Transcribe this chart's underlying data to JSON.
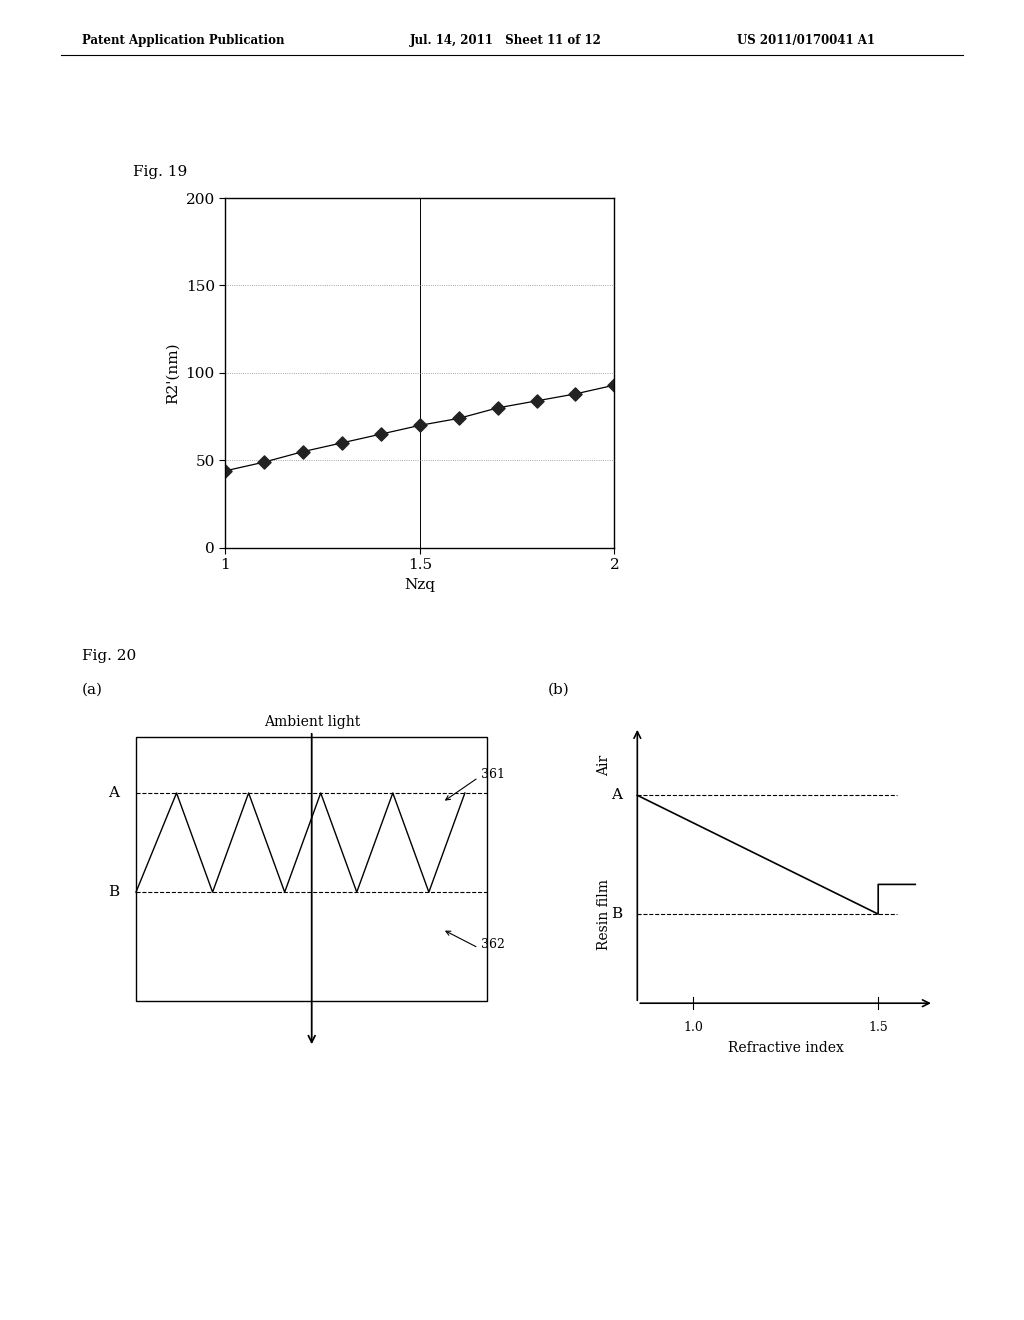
{
  "header_left": "Patent Application Publication",
  "header_mid": "Jul. 14, 2011   Sheet 11 of 12",
  "header_right": "US 2011/0170041 A1",
  "fig19_label": "Fig. 19",
  "fig19_xlabel": "Nzq",
  "fig19_ylabel": "R2'(nm)",
  "fig19_xlim": [
    1.0,
    2.0
  ],
  "fig19_ylim": [
    0,
    200
  ],
  "fig19_xticks": [
    1.0,
    1.5,
    2.0
  ],
  "fig19_xticklabels": [
    "1",
    "1.5",
    "2"
  ],
  "fig19_yticks": [
    0,
    50,
    100,
    150,
    200
  ],
  "fig19_x": [
    1.0,
    1.1,
    1.2,
    1.3,
    1.4,
    1.5,
    1.6,
    1.7,
    1.8,
    1.9,
    2.0
  ],
  "fig19_y": [
    44,
    49,
    55,
    60,
    65,
    70,
    74,
    80,
    84,
    88,
    93
  ],
  "fig20_label": "Fig. 20",
  "fig20a_label": "(a)",
  "fig20b_label": "(b)",
  "fig20a_title": "Ambient light",
  "fig20b_xlabel": "Refractive index",
  "fig20b_ylabel": "Resin film",
  "fig20b_ylabel2": "Air",
  "background_color": "#ffffff",
  "line_color": "#000000",
  "grid_color": "#888888",
  "marker_color": "#222222"
}
